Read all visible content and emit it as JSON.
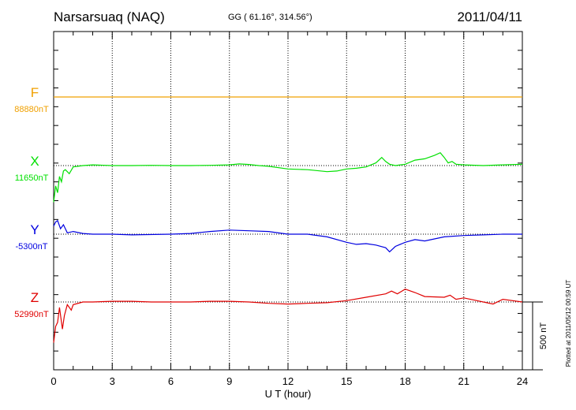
{
  "header": {
    "station": "Narsarsuaq (NAQ)",
    "coords": "GG ( 61.16°, 314.56°)",
    "date": "2011/04/11"
  },
  "footer": {
    "plotted": "Plotted at 2011/05/12 00:59 UT"
  },
  "scale": {
    "label": "500 nT",
    "nT": 500
  },
  "chart_data": {
    "type": "line",
    "title": "Narsarsuaq (NAQ)",
    "xlabel": "U T (hour)",
    "xlim": [
      0,
      24
    ],
    "xticks": [
      0,
      3,
      6,
      9,
      12,
      15,
      18,
      21,
      24
    ],
    "grid": true,
    "series": [
      {
        "name": "F",
        "baseline_label": "88880nT",
        "color": "#f0a000",
        "baseline_nT": 88880,
        "x": [
          0,
          24
        ],
        "values": [
          0,
          0
        ]
      },
      {
        "name": "X",
        "baseline_label": "11650nT",
        "color": "#00e000",
        "baseline_nT": 11650,
        "x": [
          0,
          0.1,
          0.2,
          0.3,
          0.4,
          0.5,
          0.6,
          0.8,
          1,
          1.5,
          2,
          3,
          4,
          5,
          6,
          7,
          8,
          9,
          9.5,
          10,
          10.5,
          11,
          12,
          13,
          14,
          14.5,
          15,
          15.5,
          16,
          16.5,
          16.8,
          17,
          17.2,
          17.5,
          18,
          18.5,
          19,
          19.5,
          19.8,
          20,
          20.2,
          20.4,
          20.6,
          21,
          22,
          23,
          24
        ],
        "values": [
          -270,
          -150,
          -200,
          -80,
          -120,
          -40,
          -30,
          -60,
          -10,
          0,
          5,
          0,
          0,
          2,
          0,
          0,
          2,
          5,
          12,
          8,
          0,
          -5,
          -25,
          -30,
          -45,
          -40,
          -25,
          -20,
          -10,
          20,
          60,
          30,
          10,
          0,
          10,
          40,
          50,
          75,
          95,
          60,
          20,
          30,
          10,
          5,
          0,
          5,
          10
        ]
      },
      {
        "name": "Y",
        "baseline_label": "-5300nT",
        "color": "#0000e0",
        "baseline_nT": -5300,
        "x": [
          0,
          0.1,
          0.2,
          0.35,
          0.5,
          0.7,
          1,
          1.5,
          2,
          3,
          4,
          6,
          7,
          8,
          9,
          10,
          11,
          12,
          13,
          14,
          15,
          15.5,
          16,
          16.5,
          17,
          17.2,
          17.5,
          18,
          18.5,
          19,
          20,
          21,
          22,
          23,
          24
        ],
        "values": [
          60,
          90,
          100,
          40,
          70,
          10,
          20,
          5,
          0,
          0,
          -5,
          0,
          5,
          20,
          30,
          25,
          20,
          0,
          0,
          -20,
          -60,
          -75,
          -70,
          -80,
          -100,
          -130,
          -90,
          -60,
          -40,
          -50,
          -20,
          -10,
          -5,
          0,
          0
        ]
      },
      {
        "name": "Z",
        "baseline_label": "52990nT",
        "color": "#e00000",
        "baseline_nT": 52990,
        "x": [
          0,
          0.1,
          0.2,
          0.3,
          0.45,
          0.55,
          0.7,
          0.9,
          1,
          1.5,
          2,
          3,
          4,
          5,
          6,
          7,
          8,
          9,
          10,
          11,
          12,
          13,
          14,
          15,
          16,
          17,
          17.3,
          17.6,
          18,
          18.5,
          19,
          20,
          20.3,
          20.6,
          21,
          22,
          22.5,
          23,
          24
        ],
        "values": [
          -300,
          -180,
          -150,
          -40,
          -200,
          -100,
          -20,
          -60,
          -20,
          0,
          0,
          5,
          5,
          0,
          0,
          0,
          5,
          5,
          0,
          -10,
          -15,
          -10,
          -5,
          10,
          35,
          60,
          80,
          60,
          95,
          70,
          40,
          35,
          50,
          20,
          30,
          0,
          -15,
          20,
          0
        ]
      }
    ]
  }
}
